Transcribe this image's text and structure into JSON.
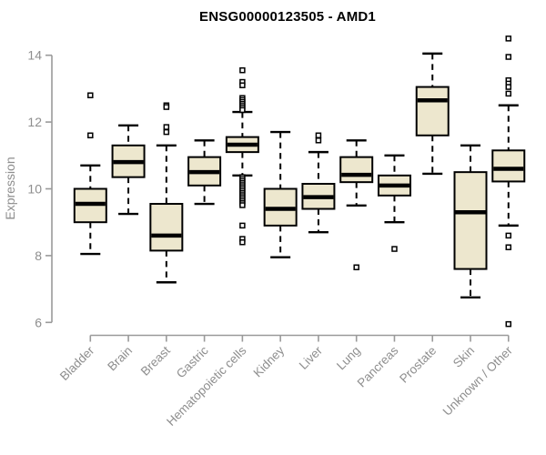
{
  "title": "ENSG00000123505 - AMD1",
  "ylabel": "Expression",
  "chart_data": {
    "type": "boxplot",
    "title": "ENSG00000123505 - AMD1",
    "xlabel": "",
    "ylabel": "Expression",
    "ylim": [
      6,
      14
    ],
    "yticks": [
      6,
      8,
      10,
      12,
      14
    ],
    "grid": false,
    "legend": "none",
    "categories": [
      "Bladder",
      "Brain",
      "Breast",
      "Gastric",
      "Hematopoietic cells",
      "Kidney",
      "Liver",
      "Lung",
      "Pancreas",
      "Prostate",
      "Skin",
      "Unknown / Other"
    ],
    "series": [
      {
        "name": "Bladder",
        "whisker_low": 8.05,
        "q1": 9.0,
        "median": 9.55,
        "q3": 10.0,
        "whisker_high": 10.7,
        "outliers": [
          12.8,
          11.6
        ]
      },
      {
        "name": "Brain",
        "whisker_low": 9.25,
        "q1": 10.35,
        "median": 10.8,
        "q3": 11.3,
        "whisker_high": 11.9,
        "outliers": []
      },
      {
        "name": "Breast",
        "whisker_low": 7.2,
        "q1": 8.15,
        "median": 8.6,
        "q3": 9.55,
        "whisker_high": 11.3,
        "outliers": [
          12.5,
          12.45,
          11.85,
          11.7
        ]
      },
      {
        "name": "Gastric",
        "whisker_low": 9.55,
        "q1": 10.1,
        "median": 10.5,
        "q3": 10.95,
        "whisker_high": 11.45,
        "outliers": []
      },
      {
        "name": "Hematopoietic cells",
        "whisker_low": 10.4,
        "q1": 11.1,
        "median": 11.32,
        "q3": 11.55,
        "whisker_high": 12.3,
        "outliers": [
          13.55,
          13.2,
          13.1,
          12.72,
          12.66,
          12.6,
          12.54,
          12.48,
          12.42,
          12.36,
          10.35,
          10.29,
          10.23,
          10.17,
          10.11,
          10.05,
          9.99,
          9.93,
          9.87,
          9.81,
          9.75,
          9.69,
          9.63,
          9.57,
          9.51,
          8.9,
          8.5,
          8.4
        ]
      },
      {
        "name": "Kidney",
        "whisker_low": 7.95,
        "q1": 8.9,
        "median": 9.4,
        "q3": 10.0,
        "whisker_high": 11.7,
        "outliers": []
      },
      {
        "name": "Liver",
        "whisker_low": 8.7,
        "q1": 9.4,
        "median": 9.75,
        "q3": 10.15,
        "whisker_high": 11.1,
        "outliers": [
          11.6,
          11.45
        ]
      },
      {
        "name": "Lung",
        "whisker_low": 9.5,
        "q1": 10.2,
        "median": 10.42,
        "q3": 10.95,
        "whisker_high": 11.45,
        "outliers": [
          7.65
        ]
      },
      {
        "name": "Pancreas",
        "whisker_low": 9.0,
        "q1": 9.8,
        "median": 10.1,
        "q3": 10.4,
        "whisker_high": 11.0,
        "outliers": [
          8.2
        ]
      },
      {
        "name": "Prostate",
        "whisker_low": 10.45,
        "q1": 11.6,
        "median": 12.65,
        "q3": 13.05,
        "whisker_high": 14.05,
        "outliers": []
      },
      {
        "name": "Skin",
        "whisker_low": 6.75,
        "q1": 7.6,
        "median": 9.3,
        "q3": 10.5,
        "whisker_high": 11.3,
        "outliers": []
      },
      {
        "name": "Unknown / Other",
        "whisker_low": 8.9,
        "q1": 10.22,
        "median": 10.6,
        "q3": 11.15,
        "whisker_high": 12.5,
        "outliers": [
          14.5,
          13.95,
          13.25,
          13.15,
          13.05,
          12.85,
          8.6,
          8.25,
          5.95
        ]
      }
    ],
    "colors": {
      "box_fill": "#EDE7CE",
      "box_border": "#000000",
      "median": "#000000",
      "whisker": "#000000",
      "outlier_stroke": "#000000",
      "outlier_fill": "#FFFFFF",
      "axis_line": "#9A9A9A",
      "tick_label": "#8E8E8E",
      "title_color": "#000000",
      "background": "#FFFFFF"
    }
  }
}
